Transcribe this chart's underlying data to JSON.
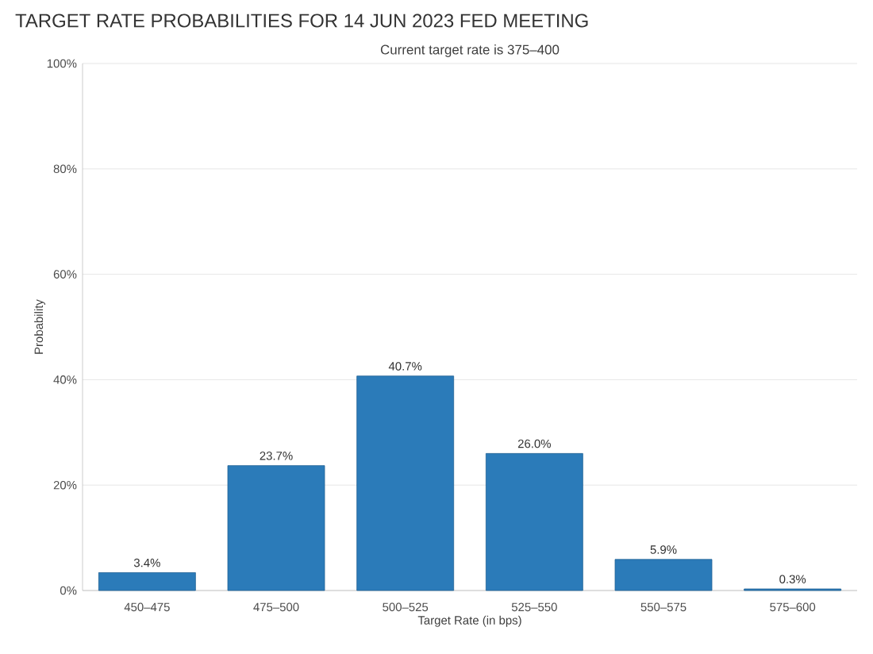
{
  "chart_data": {
    "type": "bar",
    "title": "TARGET RATE PROBABILITIES FOR 14 JUN 2023 FED MEETING",
    "subtitle": "Current target rate is 375–400",
    "xlabel": "Target Rate (in bps)",
    "ylabel": "Probability",
    "categories": [
      "450–475",
      "475–500",
      "500–525",
      "525–550",
      "550–575",
      "575–600"
    ],
    "values": [
      3.4,
      23.7,
      40.7,
      26.0,
      5.9,
      0.3
    ],
    "value_labels": [
      "3.4%",
      "23.7%",
      "40.7%",
      "26.0%",
      "5.9%",
      "0.3%"
    ],
    "color": "#2b7bb9",
    "ylim": [
      0,
      100
    ],
    "yticks": [
      {
        "value": 0,
        "label": "0%"
      },
      {
        "value": 20,
        "label": "20%"
      },
      {
        "value": 40,
        "label": "40%"
      },
      {
        "value": 60,
        "label": "60%"
      },
      {
        "value": 80,
        "label": "80%"
      },
      {
        "value": 100,
        "label": "100%"
      }
    ],
    "grid": "y"
  }
}
